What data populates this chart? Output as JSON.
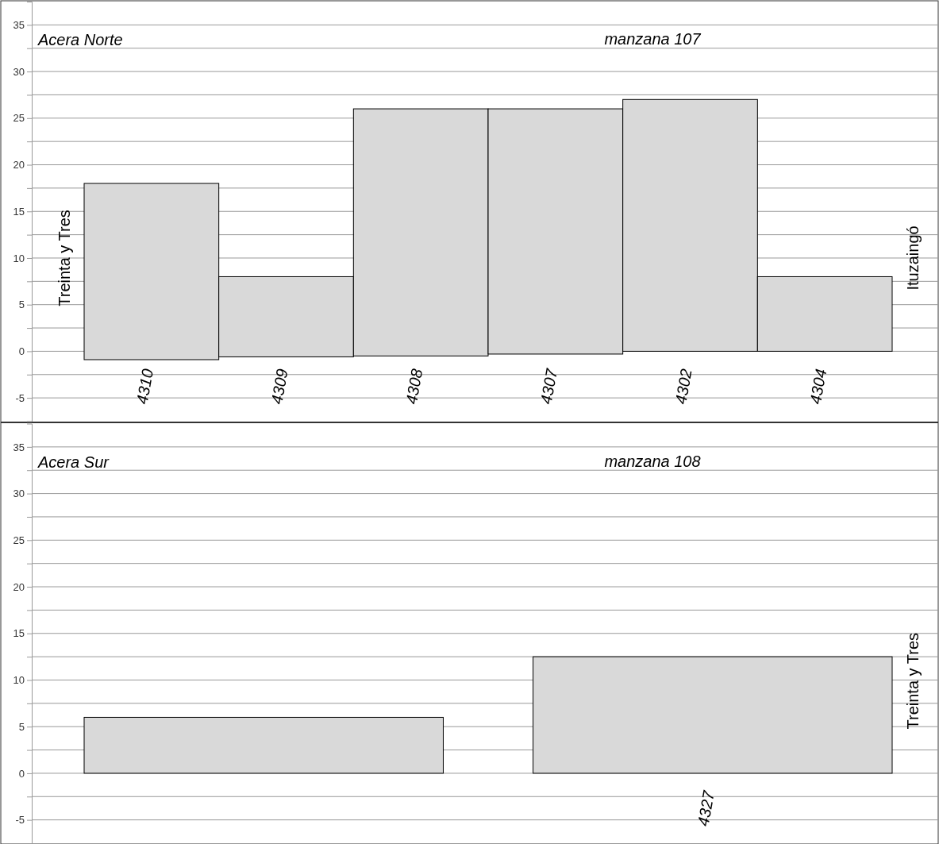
{
  "chart_data": [
    {
      "type": "bar",
      "title": "manzana 107",
      "annotations": [
        "Acera Norte",
        "Treinta y Tres",
        "Ituzaingó"
      ],
      "categories": [
        "4310",
        "4309",
        "4308",
        "4307",
        "4302",
        "4304"
      ],
      "values": [
        18.9,
        8.6,
        26.5,
        26.3,
        27,
        8
      ],
      "base": [
        -0.9,
        -0.6,
        -0.5,
        -0.3,
        0,
        0
      ],
      "color": "#d9d9d9",
      "ylim": [
        -7.5,
        37.5
      ],
      "yticks": [
        -5,
        {
          "value": -2.5,
          "label": null
        },
        0,
        {
          "value": 2.5,
          "label": null
        },
        5,
        {
          "value": 7.5,
          "label": null
        },
        10,
        {
          "value": 12.5,
          "label": null
        },
        15,
        {
          "value": 17.5,
          "label": null
        },
        20,
        {
          "value": 22.5,
          "label": null
        },
        25,
        {
          "value": 27.5,
          "label": null
        },
        30,
        {
          "value": 32.5,
          "label": null
        },
        35
      ],
      "grid": "y"
    },
    {
      "type": "bar",
      "title": "manzana 108",
      "annotations": [
        "Acera Sur",
        "Treinta y Tres"
      ],
      "categories": [
        null,
        "4327"
      ],
      "values": [
        6,
        12.5
      ],
      "color": "#d9d9d9",
      "ylim": [
        -7.5,
        37.5
      ],
      "yticks": [
        -5,
        {
          "value": -2.5,
          "label": null
        },
        0,
        {
          "value": 2.5,
          "label": null
        },
        5,
        {
          "value": 7.5,
          "label": null
        },
        10,
        {
          "value": 12.5,
          "label": null
        },
        15,
        {
          "value": 17.5,
          "label": null
        },
        20,
        {
          "value": 22.5,
          "label": null
        },
        25,
        {
          "value": 27.5,
          "label": null
        },
        30,
        {
          "value": 32.5,
          "label": null
        },
        35
      ],
      "grid": "y"
    }
  ]
}
